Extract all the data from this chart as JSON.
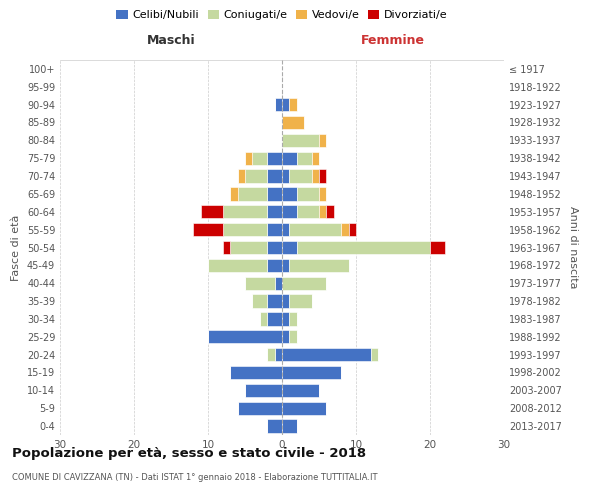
{
  "age_groups": [
    "0-4",
    "5-9",
    "10-14",
    "15-19",
    "20-24",
    "25-29",
    "30-34",
    "35-39",
    "40-44",
    "45-49",
    "50-54",
    "55-59",
    "60-64",
    "65-69",
    "70-74",
    "75-79",
    "80-84",
    "85-89",
    "90-94",
    "95-99",
    "100+"
  ],
  "birth_years": [
    "2013-2017",
    "2008-2012",
    "2003-2007",
    "1998-2002",
    "1993-1997",
    "1988-1992",
    "1983-1987",
    "1978-1982",
    "1973-1977",
    "1968-1972",
    "1963-1967",
    "1958-1962",
    "1953-1957",
    "1948-1952",
    "1943-1947",
    "1938-1942",
    "1933-1937",
    "1928-1932",
    "1923-1927",
    "1918-1922",
    "≤ 1917"
  ],
  "male": {
    "celibi": [
      2,
      6,
      5,
      7,
      1,
      10,
      2,
      2,
      1,
      2,
      2,
      2,
      2,
      2,
      2,
      2,
      0,
      0,
      1,
      0,
      0
    ],
    "coniugati": [
      0,
      0,
      0,
      0,
      1,
      0,
      1,
      2,
      4,
      8,
      5,
      6,
      6,
      4,
      3,
      2,
      0,
      0,
      0,
      0,
      0
    ],
    "vedovi": [
      0,
      0,
      0,
      0,
      0,
      0,
      0,
      0,
      0,
      0,
      0,
      0,
      0,
      1,
      1,
      1,
      0,
      0,
      0,
      0,
      0
    ],
    "divorziati": [
      0,
      0,
      0,
      0,
      0,
      0,
      0,
      0,
      0,
      0,
      1,
      4,
      3,
      0,
      0,
      0,
      0,
      0,
      0,
      0,
      0
    ]
  },
  "female": {
    "nubili": [
      2,
      6,
      5,
      8,
      12,
      1,
      1,
      1,
      0,
      1,
      2,
      1,
      2,
      2,
      1,
      2,
      0,
      0,
      1,
      0,
      0
    ],
    "coniugate": [
      0,
      0,
      0,
      0,
      1,
      1,
      1,
      3,
      6,
      8,
      18,
      7,
      3,
      3,
      3,
      2,
      5,
      0,
      0,
      0,
      0
    ],
    "vedove": [
      0,
      0,
      0,
      0,
      0,
      0,
      0,
      0,
      0,
      0,
      0,
      1,
      1,
      1,
      1,
      1,
      1,
      3,
      1,
      0,
      0
    ],
    "divorziate": [
      0,
      0,
      0,
      0,
      0,
      0,
      0,
      0,
      0,
      0,
      2,
      1,
      1,
      0,
      1,
      0,
      0,
      0,
      0,
      0,
      0
    ]
  },
  "colors": {
    "celibi_nubili": "#4472C4",
    "coniugati": "#C5D9A0",
    "vedovi": "#F0B24A",
    "divorziati": "#CC0000"
  },
  "title": "Popolazione per età, sesso e stato civile - 2018",
  "subtitle": "COMUNE DI CAVIZZANA (TN) - Dati ISTAT 1° gennaio 2018 - Elaborazione TUTTITALIA.IT",
  "ylabel_left": "Fasce di età",
  "ylabel_right": "Anni di nascita",
  "xlabel_left": "Maschi",
  "xlabel_right": "Femmine",
  "xlim": 30,
  "background_color": "#ffffff",
  "grid_color": "#cccccc"
}
